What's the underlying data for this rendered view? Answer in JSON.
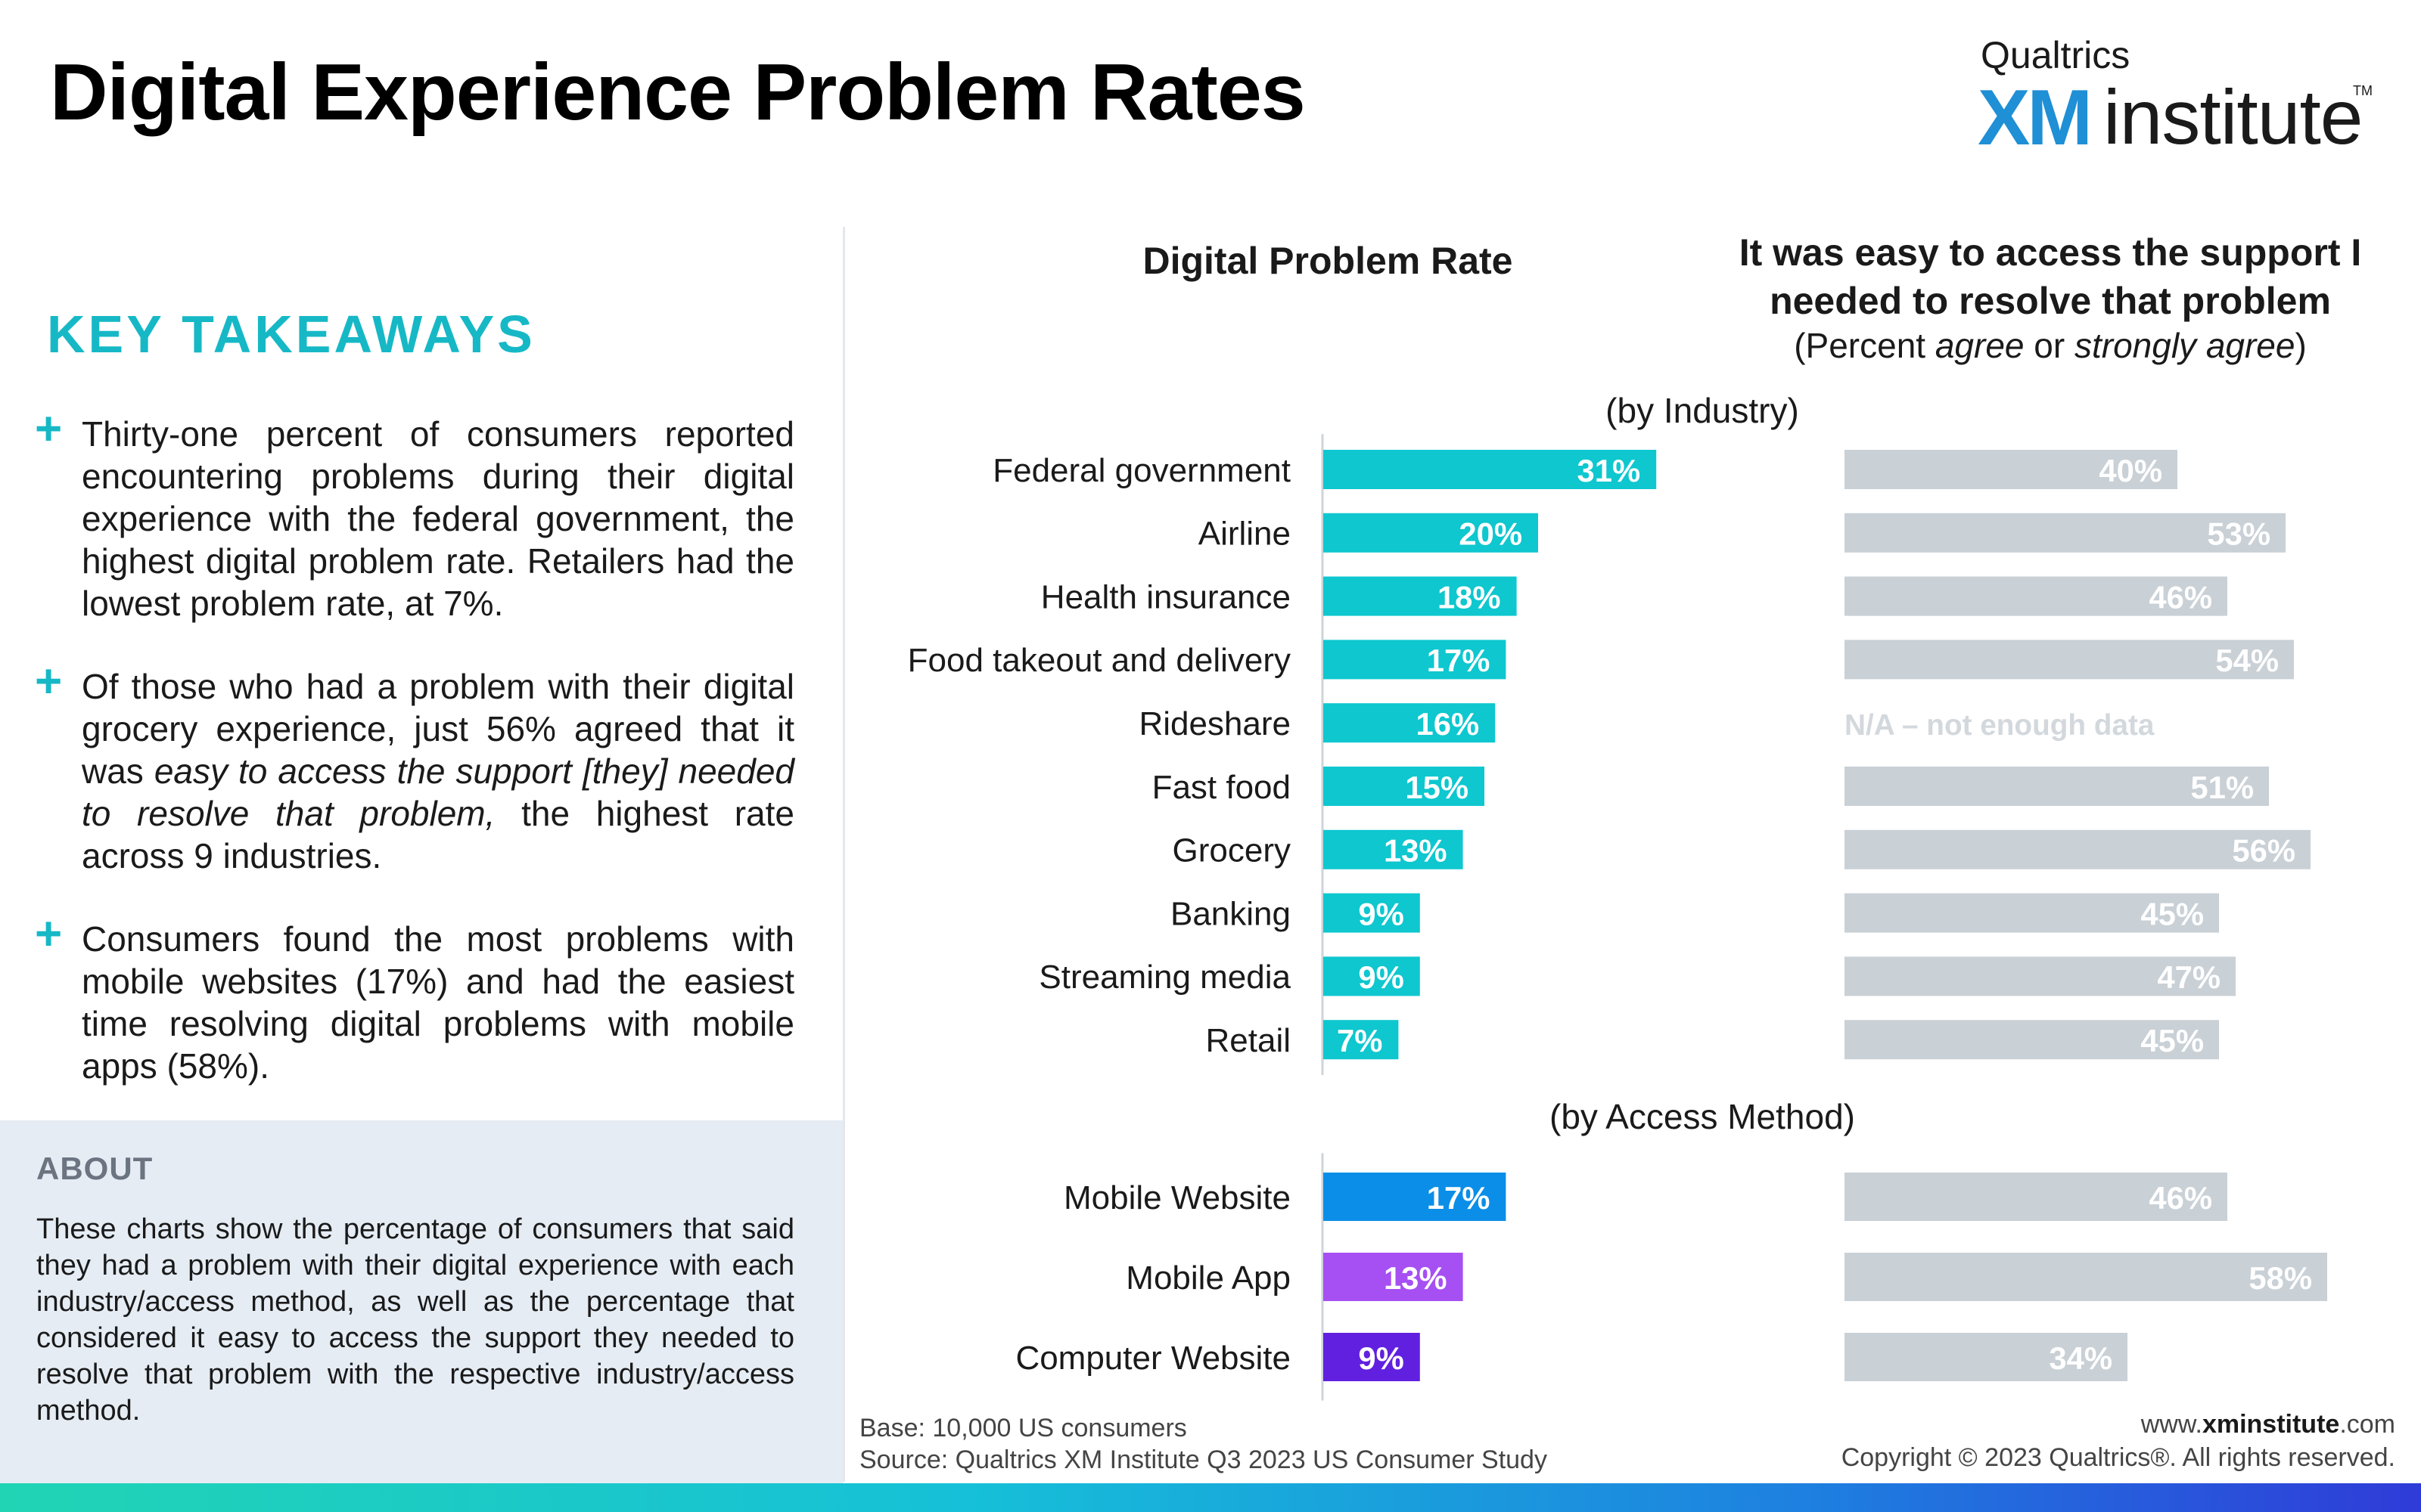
{
  "page": {
    "title": "Digital Experience Problem Rates"
  },
  "logo": {
    "brand": "Qualtrics",
    "xm": "XM",
    "institute": "institute",
    "tm": "TM"
  },
  "takeaways": {
    "heading": "KEY TAKEAWAYS",
    "item1": "Thirty-one percent of consumers reported encountering problems during their digital experience with the federal government, the highest digital problem rate. Retailers had the lowest problem rate, at 7%.",
    "item2_pre": "Of those who had a problem with their digital grocery experience, just 56% agreed that it was ",
    "item2_em": "easy to access the support [they] needed to resolve that problem,",
    "item2_post": " the highest rate across 9 industries.",
    "item3": "Consumers found the most problems with mobile websites (17%) and had the easiest time resolving digital problems with mobile apps (58%)."
  },
  "about": {
    "title": "ABOUT",
    "text": "These charts show the percentage of consumers that said they had a problem with their digital experience with each industry/access method, as well as the percentage that considered it easy to access the support they needed to resolve that problem with the respective industry/access method."
  },
  "headers": {
    "problem_rate": "Digital Problem Rate",
    "support_line1": "It was easy to access the support I",
    "support_line2": "needed to resolve that problem",
    "support_sub_pre": "(Percent ",
    "support_sub_em1": "agree",
    "support_sub_mid": " or ",
    "support_sub_em2": "strongly agree",
    "support_sub_post": ")",
    "by_industry": "(by Industry)",
    "by_access": "(by Access Method)"
  },
  "chart_data": [
    {
      "type": "bar",
      "orientation": "horizontal",
      "title": "Digital Problem Rate",
      "subtitle": "(by Industry)",
      "categories": [
        "Federal government",
        "Airline",
        "Health insurance",
        "Food takeout and delivery",
        "Rideshare",
        "Fast food",
        "Grocery",
        "Banking",
        "Streaming media",
        "Retail"
      ],
      "values": [
        31,
        20,
        18,
        17,
        16,
        15,
        13,
        9,
        9,
        7
      ],
      "unit": "%",
      "color": "#0ec7cf"
    },
    {
      "type": "bar",
      "orientation": "horizontal",
      "title": "It was easy to access the support I needed to resolve that problem",
      "subtitle": "(by Industry)",
      "categories": [
        "Federal government",
        "Airline",
        "Health insurance",
        "Food takeout and delivery",
        "Rideshare",
        "Fast food",
        "Grocery",
        "Banking",
        "Streaming media",
        "Retail"
      ],
      "values": [
        40,
        53,
        46,
        54,
        null,
        51,
        56,
        45,
        47,
        45
      ],
      "unit": "%",
      "color": "#c9d0d6",
      "missing_label": "N/A – not enough data"
    },
    {
      "type": "bar",
      "orientation": "horizontal",
      "title": "Digital Problem Rate",
      "subtitle": "(by Access Method)",
      "categories": [
        "Mobile Website",
        "Mobile App",
        "Computer Website"
      ],
      "values": [
        17,
        13,
        9
      ],
      "unit": "%",
      "colors": [
        "#0b8ee8",
        "#a64ff2",
        "#6120e0"
      ]
    },
    {
      "type": "bar",
      "orientation": "horizontal",
      "title": "It was easy to access the support I needed to resolve that problem",
      "subtitle": "(by Access Method)",
      "categories": [
        "Mobile Website",
        "Mobile App",
        "Computer Website"
      ],
      "values": [
        46,
        58,
        34
      ],
      "unit": "%",
      "color": "#c9d0d6"
    }
  ],
  "footer": {
    "base": "Base: 10,000 US consumers",
    "source": "Source: Qualtrics XM Institute Q3 2023 US Consumer Study",
    "site_pre": "www.",
    "site_bold": "xminstitute",
    "site_post": ".com",
    "copyright": "Copyright © 2023 Qualtrics®. All rights reserved."
  }
}
